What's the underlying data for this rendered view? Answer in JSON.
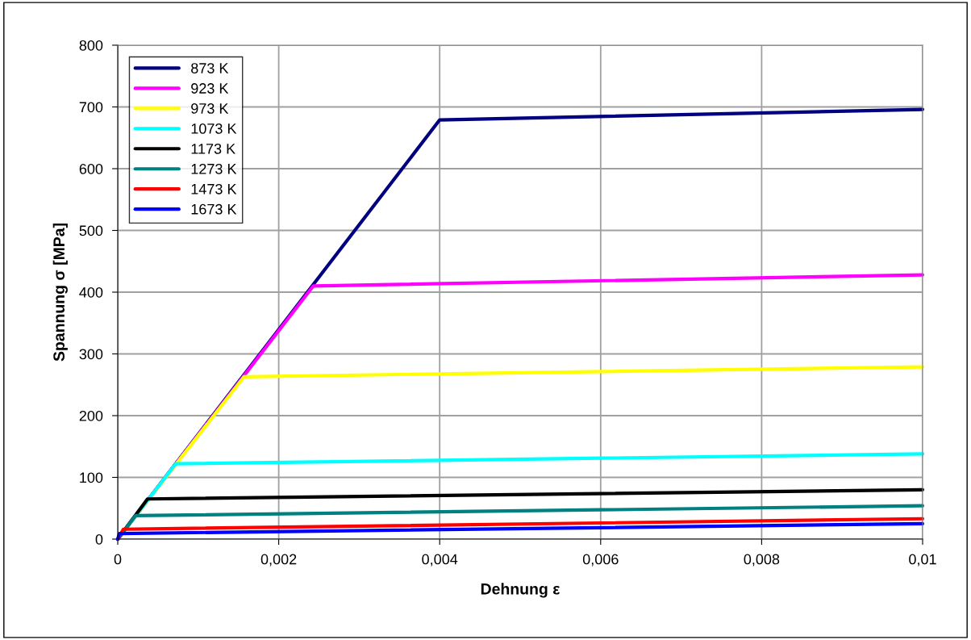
{
  "chart_data": {
    "type": "line",
    "xlabel": "Dehnung ε",
    "ylabel": "Spannung σ [MPa]",
    "xlim": [
      0,
      0.01
    ],
    "ylim": [
      0,
      800
    ],
    "xticks": [
      {
        "value": 0,
        "label": "0"
      },
      {
        "value": 0.002,
        "label": "0,002"
      },
      {
        "value": 0.004,
        "label": "0,004"
      },
      {
        "value": 0.006,
        "label": "0,006"
      },
      {
        "value": 0.008,
        "label": "0,008"
      },
      {
        "value": 0.01,
        "label": "0,01"
      }
    ],
    "yticks": [
      0,
      100,
      200,
      300,
      400,
      500,
      600,
      700,
      800
    ],
    "grid": true,
    "legend": "top left",
    "marker": "none",
    "line_style": "solid",
    "series": [
      {
        "name": "873 K",
        "color": "#000080",
        "x": [
          0,
          0.004,
          0.01
        ],
        "values": [
          0,
          679,
          696
        ]
      },
      {
        "name": "923 K",
        "color": "#ff00ff",
        "x": [
          0,
          0.00243,
          0.01
        ],
        "values": [
          0,
          410,
          428
        ]
      },
      {
        "name": "973 K",
        "color": "#ffff00",
        "x": [
          0,
          0.00157,
          0.01
        ],
        "values": [
          0,
          263,
          279
        ]
      },
      {
        "name": "1073 K",
        "color": "#00ffff",
        "x": [
          0,
          0.00072,
          0.01
        ],
        "values": [
          0,
          122,
          138
        ]
      },
      {
        "name": "1173 K",
        "color": "#000000",
        "x": [
          0,
          0.00037,
          0.01
        ],
        "values": [
          0,
          65,
          80
        ]
      },
      {
        "name": "1273 K",
        "color": "#008080",
        "x": [
          0,
          0.00022,
          0.01
        ],
        "values": [
          0,
          38,
          54
        ]
      },
      {
        "name": "1473 K",
        "color": "#ff0000",
        "x": [
          0,
          7e-05,
          0.01
        ],
        "values": [
          0,
          16,
          33
        ]
      },
      {
        "name": "1673 K",
        "color": "#0000ff",
        "x": [
          0,
          2e-05,
          0.01
        ],
        "values": [
          0,
          9,
          25
        ]
      }
    ]
  }
}
